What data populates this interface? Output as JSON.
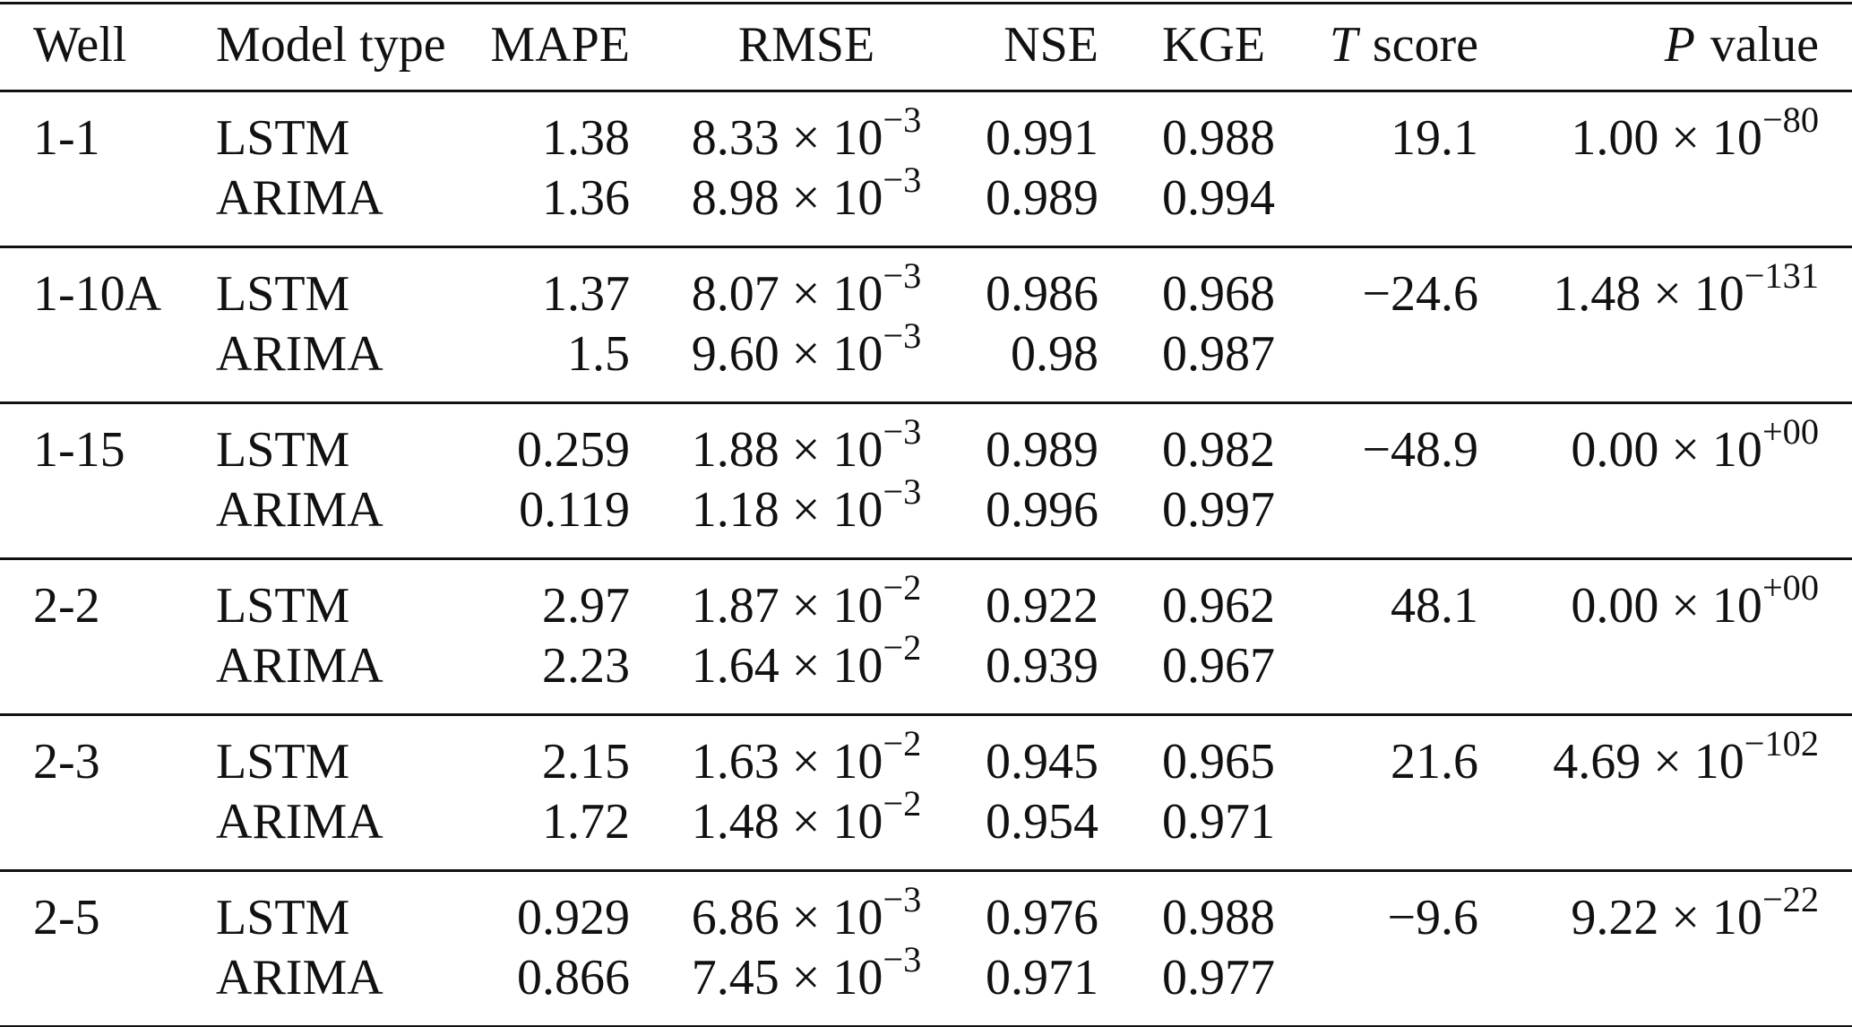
{
  "table": {
    "header": [
      "Well",
      "Model type",
      "MAPE",
      "RMSE",
      "NSE",
      "KGE",
      {
        "italic": "T",
        "text": "score"
      },
      {
        "italic": "P",
        "text": "value"
      }
    ],
    "groups": [
      {
        "well": "1-1",
        "t_score": "19.1",
        "p_value": {
          "base": "1.00 × 10",
          "exp": "−80"
        },
        "rows": [
          {
            "model": "LSTM",
            "mape": "1.38",
            "rmse": {
              "base": "8.33 × 10",
              "exp": "−3"
            },
            "nse": "0.991",
            "kge": "0.988"
          },
          {
            "model": "ARIMA",
            "mape": "1.36",
            "rmse": {
              "base": "8.98 × 10",
              "exp": "−3"
            },
            "nse": "0.989",
            "kge": "0.994"
          }
        ]
      },
      {
        "well": "1-10A",
        "t_score": "−24.6",
        "p_value": {
          "base": "1.48 × 10",
          "exp": "−131"
        },
        "rows": [
          {
            "model": "LSTM",
            "mape": "1.37",
            "rmse": {
              "base": "8.07 × 10",
              "exp": "−3"
            },
            "nse": "0.986",
            "kge": "0.968"
          },
          {
            "model": "ARIMA",
            "mape": "1.5",
            "rmse": {
              "base": "9.60 × 10",
              "exp": "−3"
            },
            "nse": "0.98",
            "kge": "0.987"
          }
        ]
      },
      {
        "well": "1-15",
        "t_score": "−48.9",
        "p_value": {
          "base": "0.00 × 10",
          "exp": "+00"
        },
        "rows": [
          {
            "model": "LSTM",
            "mape": "0.259",
            "rmse": {
              "base": "1.88 × 10",
              "exp": "−3"
            },
            "nse": "0.989",
            "kge": "0.982"
          },
          {
            "model": "ARIMA",
            "mape": "0.119",
            "rmse": {
              "base": "1.18 × 10",
              "exp": "−3"
            },
            "nse": "0.996",
            "kge": "0.997"
          }
        ]
      },
      {
        "well": "2-2",
        "t_score": "48.1",
        "p_value": {
          "base": "0.00 × 10",
          "exp": "+00"
        },
        "rows": [
          {
            "model": "LSTM",
            "mape": "2.97",
            "rmse": {
              "base": "1.87 × 10",
              "exp": "−2"
            },
            "nse": "0.922",
            "kge": "0.962"
          },
          {
            "model": "ARIMA",
            "mape": "2.23",
            "rmse": {
              "base": "1.64 × 10",
              "exp": "−2"
            },
            "nse": "0.939",
            "kge": "0.967"
          }
        ]
      },
      {
        "well": "2-3",
        "t_score": "21.6",
        "p_value": {
          "base": "4.69 × 10",
          "exp": "−102"
        },
        "rows": [
          {
            "model": "LSTM",
            "mape": "2.15",
            "rmse": {
              "base": "1.63 × 10",
              "exp": "−2"
            },
            "nse": "0.945",
            "kge": "0.965"
          },
          {
            "model": "ARIMA",
            "mape": "1.72",
            "rmse": {
              "base": "1.48 × 10",
              "exp": "−2"
            },
            "nse": "0.954",
            "kge": "0.971"
          }
        ]
      },
      {
        "well": "2-5",
        "t_score": "−9.6",
        "p_value": {
          "base": "9.22 × 10",
          "exp": "−22"
        },
        "rows": [
          {
            "model": "LSTM",
            "mape": "0.929",
            "rmse": {
              "base": "6.86 × 10",
              "exp": "−3"
            },
            "nse": "0.976",
            "kge": "0.988"
          },
          {
            "model": "ARIMA",
            "mape": "0.866",
            "rmse": {
              "base": "7.45 × 10",
              "exp": "−3"
            },
            "nse": "0.971",
            "kge": "0.977"
          }
        ]
      }
    ]
  }
}
